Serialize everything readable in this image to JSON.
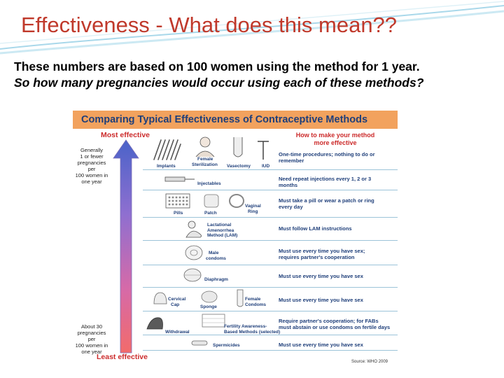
{
  "slide": {
    "title": "Effectiveness - What does this mean??",
    "line1": "These numbers are based on 100 women using the method for 1 year.",
    "line2": "So how many pregnancies would occur using each of these methods?"
  },
  "chart": {
    "title": "Comparing Typical Effectiveness of Contraceptive Methods",
    "most_effective": "Most effective",
    "least_effective": "Least effective",
    "how_to_line1": "How to make your method",
    "how_to_line2": "more effective",
    "top_note": [
      "Generally",
      "1 or fewer",
      "pregnancies per",
      "100 women in",
      "one year"
    ],
    "bottom_note": [
      "About 30",
      "pregnancies per",
      "100 women in",
      "one year"
    ],
    "source": "Source: WHO 2009",
    "methods": {
      "implants": "Implants",
      "sterilization": [
        "Female",
        "Sterilization"
      ],
      "vasectomy": "Vasectomy",
      "iud": "IUD",
      "injectables": "Injectables",
      "pills": "Pills",
      "patch": "Patch",
      "ring": [
        "Vaginal",
        "Ring"
      ],
      "lam": [
        "Lactational",
        "Amenorrhea",
        "Method (LAM)"
      ],
      "male_condoms": [
        "Male",
        "condoms"
      ],
      "diaphragm": "Diaphragm",
      "cervical_cap": [
        "Cervical",
        "Cap"
      ],
      "sponge": "Sponge",
      "female_condoms": [
        "Female",
        "Condoms"
      ],
      "withdrawal": "Withdrawal",
      "fabm": [
        "Fertility Awareness-",
        "Based Methods (selected)"
      ],
      "spermicides": "Spermicides"
    },
    "instructions": {
      "r1": [
        "One-time procedures; nothing to do or",
        "remember"
      ],
      "r2": [
        "Need repeat injections every 1, 2 or 3",
        "months"
      ],
      "r3": [
        "Must take a pill or wear a patch or ring",
        "every day"
      ],
      "r4": "Must follow LAM instructions",
      "r5": [
        "Must use every time you have sex;",
        "requires partner's cooperation"
      ],
      "r6": "Must use every time you have sex",
      "r7": "Must use every time you have sex",
      "r8": [
        "Require partner's cooperation; for FABs",
        "must abstain or use condoms on fertile days"
      ],
      "r9": "Must use every time you have sex"
    },
    "colors": {
      "header": "#f2a25e",
      "text_blue": "#1f3f7a",
      "red": "#cc2b2b",
      "title_red": "#c0392b"
    }
  }
}
